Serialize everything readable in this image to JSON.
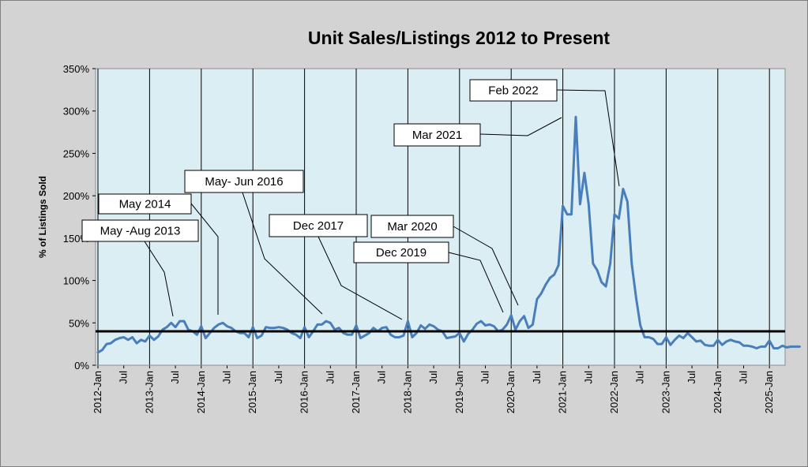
{
  "chart_data": {
    "type": "line",
    "title": "Unit Sales/Listings 2012 to Present",
    "ylabel": "% of Listings Sold",
    "xlabel": "",
    "ylim": [
      0,
      350
    ],
    "ytick_values": [
      0,
      50,
      100,
      150,
      200,
      250,
      300,
      350
    ],
    "ytick_labels": [
      "0%",
      "50%",
      "100%",
      "150%",
      "200%",
      "250%",
      "300%",
      "350%"
    ],
    "x_start": "2012-01",
    "x_end": "2025-05",
    "xtick_labels": [
      "2012-Jan",
      "Jul",
      "2013-Jan",
      "Jul",
      "2014-Jan",
      "Jul",
      "2015-Jan",
      "Jul",
      "2016-Jan",
      "Jul",
      "2017-Jan",
      "Jul",
      "2018-Jan",
      "Jul",
      "2019-Jan",
      "Jul",
      "2020-Jan",
      "Jul",
      "2021-Jan",
      "Jul",
      "2022-Jan",
      "Jul",
      "2023-Jan",
      "Jul",
      "2024-Jan",
      "Jul",
      "2025-Jan"
    ],
    "grid": {
      "vertical_major_at_january": true,
      "horizontal": false
    },
    "reference_line": {
      "y": 40,
      "color": "#000000"
    },
    "series": [
      {
        "color": "#4a7ebb",
        "values": [
          15,
          18,
          25,
          26,
          30,
          32,
          33,
          30,
          33,
          26,
          30,
          28,
          35,
          30,
          34,
          42,
          45,
          50,
          45,
          52,
          52,
          42,
          40,
          36,
          46,
          32,
          38,
          44,
          48,
          50,
          46,
          44,
          40,
          38,
          38,
          33,
          45,
          32,
          35,
          45,
          44,
          44,
          45,
          44,
          42,
          38,
          36,
          32,
          45,
          33,
          40,
          48,
          48,
          52,
          50,
          42,
          44,
          38,
          36,
          36,
          47,
          32,
          35,
          38,
          44,
          40,
          44,
          45,
          36,
          33,
          33,
          35,
          52,
          33,
          38,
          47,
          43,
          48,
          46,
          42,
          40,
          32,
          33,
          34,
          38,
          28,
          37,
          42,
          49,
          52,
          47,
          48,
          46,
          40,
          42,
          48,
          59,
          42,
          52,
          58,
          44,
          48,
          78,
          85,
          95,
          103,
          107,
          118,
          188,
          178,
          178,
          293,
          190,
          227,
          190,
          120,
          112,
          98,
          93,
          120,
          178,
          173,
          208,
          193,
          120,
          80,
          47,
          33,
          33,
          31,
          25,
          25,
          33,
          24,
          30,
          35,
          32,
          38,
          33,
          28,
          29,
          24,
          23,
          23,
          30,
          24,
          28,
          30,
          28,
          27,
          23,
          23,
          22,
          20,
          22,
          22,
          29,
          20,
          20,
          23,
          21,
          22,
          22,
          22
        ]
      }
    ],
    "annotations": [
      {
        "text": "May -Aug 2013"
      },
      {
        "text": "May 2014"
      },
      {
        "text": "May- Jun 2016"
      },
      {
        "text": "Dec 2017"
      },
      {
        "text": "Mar 2020"
      },
      {
        "text": "Dec 2019"
      },
      {
        "text": "Mar 2021"
      },
      {
        "text": "Feb 2022"
      }
    ]
  }
}
